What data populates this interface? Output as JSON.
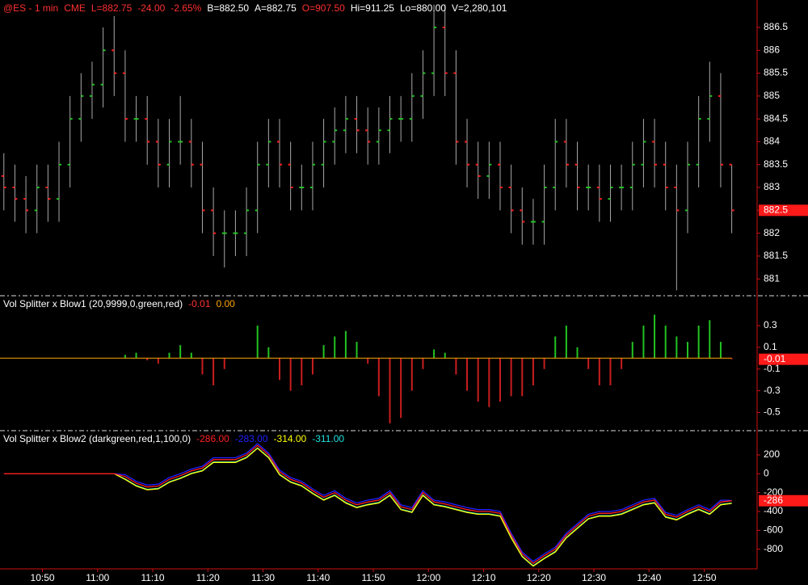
{
  "header": [
    {
      "text": "@ES - 1 min",
      "color": "#ff3030"
    },
    {
      "text": "CME",
      "color": "#ff3030"
    },
    {
      "text": "L=882.75",
      "color": "#ff3030"
    },
    {
      "text": "-24.00",
      "color": "#ff3030"
    },
    {
      "text": "-2.65%",
      "color": "#ff3030"
    },
    {
      "text": "B=882.50",
      "color": "#ffffff"
    },
    {
      "text": "A=882.75",
      "color": "#ffffff"
    },
    {
      "text": "O=907.50",
      "color": "#ff3030"
    },
    {
      "text": "Hi=911.25",
      "color": "#ffffff"
    },
    {
      "text": "Lo=880.00",
      "color": "#ffffff"
    },
    {
      "text": "V=2,280,101",
      "color": "#ffffff"
    }
  ],
  "chart_data": [
    {
      "type": "ohlc",
      "bar_color": "#a8a8a8",
      "up_color": "#22c322",
      "down_color": "#ff2020",
      "label_box_color": "#ff1a1a",
      "open": [
        883.25,
        883,
        882.75,
        882.5,
        883,
        882.75,
        883.5,
        884.5,
        885,
        885.25,
        886,
        885.5,
        884.5,
        884.5,
        884,
        883.5,
        884,
        884,
        883.5,
        882.5,
        882,
        882,
        882,
        882.5,
        883.5,
        884,
        883.5,
        883,
        883,
        883.5,
        884,
        884.25,
        884.5,
        884.25,
        884,
        884.25,
        884.5,
        884.5,
        885,
        885.5,
        886.5,
        885.5,
        884,
        883.5,
        883.25,
        883.5,
        883,
        882.5,
        882.25,
        882.25,
        883,
        884,
        883.5,
        883,
        883,
        882.75,
        883,
        883,
        883.5,
        884,
        883.5,
        883,
        882.5,
        883.5,
        884.5,
        885,
        883.5
      ],
      "high": [
        883.75,
        883.5,
        883.25,
        883.5,
        883.5,
        884,
        885,
        885.5,
        885.75,
        886.5,
        886.75,
        886,
        885,
        885,
        884.5,
        884.5,
        885,
        884.5,
        884,
        883,
        882.5,
        882.5,
        883,
        884,
        884.5,
        884.5,
        884,
        883.5,
        884,
        884.5,
        884.75,
        885,
        885,
        884.75,
        884.75,
        885,
        885,
        885.5,
        886,
        887,
        887,
        886,
        884.5,
        884,
        884,
        884,
        883.5,
        883,
        882.75,
        883.5,
        884.5,
        884.5,
        884,
        883.5,
        883.5,
        883.5,
        883.5,
        884,
        884.5,
        884.5,
        884,
        883.5,
        884,
        885,
        885.75,
        885.5,
        883.5
      ],
      "low": [
        882.5,
        882.25,
        882,
        882,
        882.25,
        882.25,
        883,
        884,
        884.5,
        884.75,
        885,
        884,
        884,
        883.5,
        883,
        883,
        883.5,
        883,
        882,
        881.5,
        881.25,
        881.5,
        881.5,
        882,
        883,
        883,
        882.5,
        882.5,
        882.5,
        883,
        883.5,
        883.75,
        883.75,
        883.5,
        883.5,
        883.75,
        884,
        884,
        884.5,
        885,
        885,
        883.5,
        883,
        882.75,
        882.75,
        882.5,
        882,
        881.75,
        881.75,
        881.75,
        882.5,
        883,
        882.5,
        882.5,
        882.25,
        882.25,
        882.5,
        882.5,
        883,
        883,
        882.5,
        880.75,
        882,
        883,
        884,
        883,
        882
      ],
      "close": [
        883,
        882.75,
        882.5,
        883,
        882.75,
        883.5,
        884.5,
        885,
        885.25,
        886,
        885.5,
        884.5,
        884.5,
        884,
        883.5,
        884,
        884,
        883.5,
        882.5,
        882,
        882,
        882,
        882.5,
        883.5,
        884,
        883.5,
        883,
        883,
        883.5,
        884,
        884.25,
        884.5,
        884.25,
        884,
        884.25,
        884.5,
        884.5,
        885,
        885.5,
        886.5,
        885.5,
        884,
        883.5,
        883.25,
        883.5,
        883,
        882.5,
        882.25,
        882.25,
        883,
        884,
        883.5,
        883,
        883,
        882.75,
        883,
        883,
        883.5,
        884,
        883.5,
        883,
        882.5,
        883.5,
        884.5,
        885,
        883.5,
        882.5
      ],
      "last_label": "882.5",
      "ylim": [
        880.65,
        887.1
      ],
      "yticks": [
        881,
        881.5,
        882,
        882.5,
        883,
        883.5,
        884,
        884.5,
        885,
        885.5,
        886,
        886.5
      ]
    },
    {
      "type": "bar",
      "title": "Vol Splitter x Blow1 (20,9999,0,green,red)",
      "positive_color": "#22c322",
      "negative_color": "#c81e1e",
      "zero_color": "#ffa500",
      "label_box_color": "#ff1a1a",
      "values": [
        0,
        0,
        0,
        0,
        0,
        0,
        0,
        0,
        0,
        0,
        0,
        0.03,
        0.05,
        -0.02,
        -0.05,
        0.05,
        0.12,
        0.05,
        -0.15,
        -0.25,
        -0.1,
        0,
        0,
        0.3,
        0.1,
        -0.2,
        -0.3,
        -0.25,
        -0.15,
        0.12,
        0.2,
        0.25,
        0.15,
        -0.05,
        -0.35,
        -0.6,
        -0.55,
        -0.3,
        -0.1,
        0.08,
        0.05,
        -0.15,
        -0.3,
        -0.4,
        -0.45,
        -0.4,
        -0.35,
        -0.35,
        -0.25,
        -0.1,
        0.2,
        0.3,
        0.1,
        -0.1,
        -0.25,
        -0.25,
        -0.1,
        0.15,
        0.3,
        0.4,
        0.3,
        0.2,
        0.15,
        0.3,
        0.35,
        0.15,
        -0.01
      ],
      "last_label": "-0.01",
      "zero_line": 0,
      "zero_label": "0.00",
      "ylim": [
        -0.66,
        0.56
      ],
      "yticks": [
        0.3,
        0.1,
        -0.1,
        -0.3,
        -0.5
      ]
    },
    {
      "type": "line",
      "title": "Vol Splitter x Blow2 (darkgreen,red,1,100,0)",
      "label_box_color": "#ff1a1a",
      "x": [
        643,
        645,
        647,
        649,
        651,
        653,
        655,
        657,
        659,
        661,
        663,
        665,
        667,
        669,
        671,
        673,
        675,
        677,
        679,
        681,
        683,
        685,
        687,
        689,
        691,
        693,
        695,
        697,
        699,
        701,
        703,
        705,
        707,
        709,
        711,
        713,
        715,
        717,
        719,
        721,
        723,
        725,
        727,
        729,
        731,
        733,
        735,
        737,
        739,
        741,
        743,
        745,
        747,
        749,
        751,
        753,
        755,
        757,
        759,
        761,
        763,
        765,
        767,
        769,
        771,
        773,
        775
      ],
      "xlim": [
        642.3,
        779.6
      ],
      "xticks": [
        {
          "value": 650,
          "label": "10:50"
        },
        {
          "value": 660,
          "label": "11:00"
        },
        {
          "value": 670,
          "label": "11:10"
        },
        {
          "value": 680,
          "label": "11:20"
        },
        {
          "value": 690,
          "label": "11:30"
        },
        {
          "value": 700,
          "label": "11:40"
        },
        {
          "value": 710,
          "label": "11:50"
        },
        {
          "value": 720,
          "label": "12:00"
        },
        {
          "value": 730,
          "label": "12:10"
        },
        {
          "value": 740,
          "label": "12:20"
        },
        {
          "value": 750,
          "label": "12:30"
        },
        {
          "value": 760,
          "label": "12:40"
        },
        {
          "value": 770,
          "label": "12:50"
        }
      ],
      "series": [
        {
          "color": "#ff2020",
          "legend_label": "-286.00",
          "axis_label": "-286",
          "values": [
            0,
            0,
            0,
            0,
            0,
            0,
            0,
            0,
            0,
            0,
            0,
            -30,
            -100,
            -140,
            -130,
            -60,
            -20,
            30,
            60,
            150,
            150,
            150,
            200,
            300,
            200,
            20,
            -60,
            -100,
            -180,
            -250,
            -200,
            -280,
            -330,
            -300,
            -280,
            -200,
            -350,
            -380,
            -200,
            -300,
            -320,
            -350,
            -380,
            -400,
            -400,
            -420,
            -650,
            -850,
            -950,
            -870,
            -800,
            -650,
            -550,
            -450,
            -420,
            -420,
            -400,
            -350,
            -300,
            -280,
            -430,
            -460,
            -400,
            -350,
            -400,
            -300,
            -286
          ]
        },
        {
          "color": "#2020ff",
          "legend_label": "-283.00",
          "values": [
            null,
            null,
            null,
            null,
            null,
            null,
            null,
            null,
            null,
            null,
            0,
            -10,
            -80,
            -120,
            -110,
            -40,
            0,
            50,
            80,
            170,
            170,
            170,
            220,
            320,
            220,
            40,
            -40,
            -80,
            -160,
            -230,
            -180,
            -260,
            -310,
            -280,
            -260,
            -180,
            -330,
            -360,
            -180,
            -280,
            -300,
            -330,
            -360,
            -380,
            -380,
            -400,
            -630,
            -830,
            -930,
            -850,
            -780,
            -630,
            -530,
            -430,
            -400,
            -400,
            -380,
            -330,
            -280,
            -260,
            -410,
            -440,
            -380,
            -330,
            -380,
            -280,
            -283
          ]
        },
        {
          "color": "#ffff00",
          "legend_label": "-314.00",
          "values": [
            null,
            null,
            null,
            null,
            null,
            null,
            null,
            null,
            null,
            null,
            0,
            -60,
            -130,
            -170,
            -160,
            -90,
            -50,
            0,
            30,
            120,
            120,
            120,
            170,
            270,
            170,
            -10,
            -90,
            -130,
            -210,
            -280,
            -230,
            -310,
            -360,
            -330,
            -310,
            -230,
            -380,
            -410,
            -230,
            -330,
            -350,
            -380,
            -410,
            -430,
            -430,
            -450,
            -680,
            -880,
            -980,
            -900,
            -830,
            -680,
            -580,
            -480,
            -450,
            -450,
            -430,
            -380,
            -330,
            -310,
            -460,
            -490,
            -430,
            -380,
            -430,
            -330,
            -314
          ]
        },
        {
          "color": "#20e0e0",
          "legend_label": "-311.00",
          "values": [
            null,
            null,
            null,
            null,
            null,
            null,
            null,
            null,
            null,
            null,
            0,
            -55,
            -125,
            -165,
            -155,
            -85,
            -45,
            5,
            35,
            125,
            125,
            125,
            175,
            275,
            175,
            -5,
            -85,
            -125,
            -205,
            -275,
            -225,
            -305,
            -355,
            -325,
            -305,
            -225,
            -375,
            -405,
            -225,
            -325,
            -345,
            -375,
            -405,
            -425,
            -425,
            -445,
            -675,
            -875,
            -975,
            -895,
            -825,
            -675,
            -575,
            -475,
            -445,
            -445,
            -425,
            -375,
            -325,
            -305,
            -455,
            -485,
            -425,
            -375,
            -425,
            -325,
            -311
          ]
        }
      ],
      "ylim": [
        -1000,
        440
      ],
      "yticks": [
        200,
        0,
        -200,
        -400,
        -600,
        -800
      ]
    }
  ]
}
